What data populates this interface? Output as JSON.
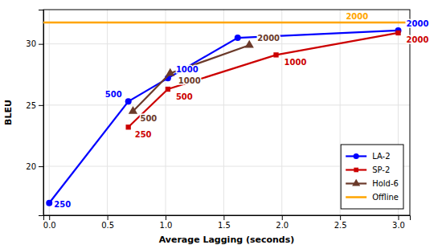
{
  "chart_data": {
    "type": "line",
    "xlabel": "Average Lagging (seconds)",
    "ylabel": "BLEU",
    "xlim": [
      -0.05,
      3.1
    ],
    "ylim": [
      16.0,
      32.8
    ],
    "xticks": [
      {
        "value": 0,
        "label": "0.0"
      },
      0.5,
      {
        "value": 1.0,
        "label": "1.0"
      },
      1.5,
      {
        "value": 2.0,
        "label": "2.0"
      },
      2.5,
      {
        "value": 3.0,
        "label": "3.0"
      }
    ],
    "yticks": [
      20,
      25,
      30
    ],
    "grid": true,
    "legend": "lower right",
    "series": [
      {
        "name": "LA-2",
        "color": "#0000FF",
        "marker": "circle",
        "x": [
          0.0,
          0.68,
          1.02,
          1.62,
          3.0
        ],
        "values": [
          17.0,
          25.3,
          27.2,
          30.5,
          31.1
        ]
      },
      {
        "name": "SP-2",
        "color": "#CC0000",
        "marker": "square",
        "x": [
          0.68,
          1.02,
          1.95,
          3.0
        ],
        "values": [
          23.2,
          26.3,
          29.1,
          30.9
        ]
      },
      {
        "name": "Hold-6",
        "color": "#6B3A2A",
        "marker": "triangle",
        "x": [
          0.72,
          1.04,
          1.72
        ],
        "values": [
          24.5,
          27.6,
          29.9
        ]
      },
      {
        "name": "Offline",
        "color": "#FFA500",
        "type": "hline",
        "values": [
          31.75
        ]
      }
    ],
    "annotations": [
      {
        "text": "250",
        "x": 0.0,
        "y": 17.0,
        "color": "#0000FF"
      },
      {
        "text": "500",
        "x": 0.68,
        "y": 25.3,
        "color": "#0000FF"
      },
      {
        "text": "1000",
        "x": 1.02,
        "y": 27.2,
        "color": "#0000FF"
      },
      {
        "text": "2000",
        "x": 3.0,
        "y": 31.1,
        "color": "#0000FF"
      },
      {
        "text": "250",
        "x": 0.68,
        "y": 23.2,
        "color": "#CC0000"
      },
      {
        "text": "500",
        "x": 1.02,
        "y": 26.3,
        "color": "#CC0000"
      },
      {
        "text": "1000",
        "x": 1.95,
        "y": 29.1,
        "color": "#CC0000"
      },
      {
        "text": "2000",
        "x": 3.0,
        "y": 30.9,
        "color": "#CC0000"
      },
      {
        "text": "500",
        "x": 0.72,
        "y": 24.5,
        "color": "#6B3A2A"
      },
      {
        "text": "1000",
        "x": 1.04,
        "y": 27.6,
        "color": "#6B3A2A"
      },
      {
        "text": "2000",
        "x": 1.72,
        "y": 29.9,
        "color": "#6B3A2A"
      },
      {
        "text": "2000",
        "x": 2.55,
        "y": 31.75,
        "color": "#FFA500"
      }
    ]
  }
}
